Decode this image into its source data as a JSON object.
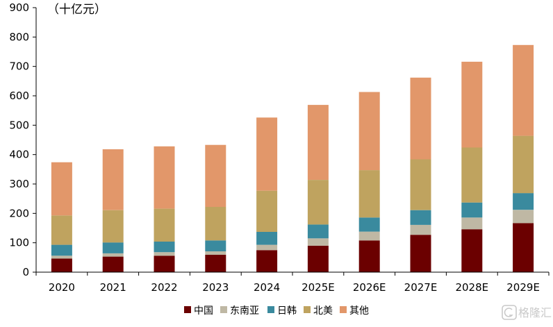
{
  "chart_data": {
    "type": "bar",
    "stacked": true,
    "unit_label": "（十亿元）",
    "categories": [
      "2020",
      "2021",
      "2022",
      "2023",
      "2024",
      "2025E",
      "2026E",
      "2027E",
      "2028E",
      "2029E"
    ],
    "series": [
      {
        "name": "中国",
        "color": "#6B0000",
        "values": [
          46,
          53,
          56,
          59,
          75,
          90,
          108,
          127,
          146,
          167
        ]
      },
      {
        "name": "东南亚",
        "color": "#BFB8A4",
        "values": [
          10,
          11,
          12,
          12,
          18,
          25,
          30,
          34,
          40,
          45
        ]
      },
      {
        "name": "日韩",
        "color": "#3A8A9E",
        "values": [
          37,
          37,
          36,
          37,
          44,
          47,
          48,
          50,
          51,
          57
        ]
      },
      {
        "name": "北美",
        "color": "#BFA35F",
        "values": [
          100,
          110,
          112,
          114,
          140,
          152,
          161,
          173,
          187,
          195
        ]
      },
      {
        "name": "其他",
        "color": "#E2976A",
        "values": [
          181,
          207,
          212,
          211,
          249,
          255,
          266,
          278,
          292,
          309
        ]
      }
    ],
    "ylim": [
      0,
      900
    ],
    "yticks": [
      "0",
      "100",
      "200",
      "300",
      "400",
      "500",
      "600",
      "700",
      "800",
      "900"
    ],
    "legend_position": "bottom",
    "grid": false
  },
  "watermark": {
    "text": "格隆汇"
  }
}
